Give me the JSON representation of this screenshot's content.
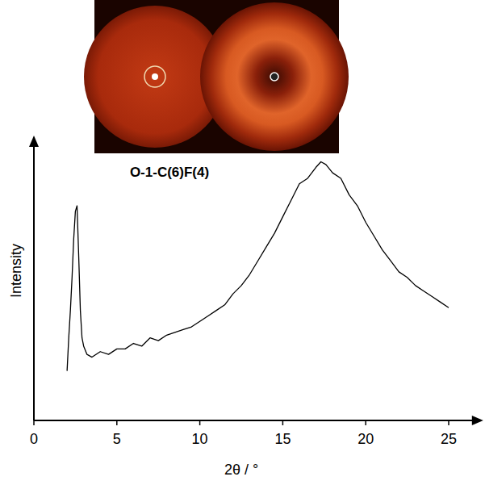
{
  "chart_data": {
    "type": "line",
    "title": "O-1-C(6)F(4)",
    "xlabel": "2θ / °",
    "ylabel": "Intensity",
    "x": [
      2.0,
      2.1,
      2.2,
      2.3,
      2.4,
      2.5,
      2.6,
      2.7,
      2.8,
      2.9,
      3.0,
      3.2,
      3.5,
      4,
      4.5,
      5,
      5.5,
      6,
      6.5,
      7,
      7.5,
      8,
      8.5,
      9,
      9.5,
      10,
      10.5,
      11,
      11.5,
      12,
      12.5,
      13,
      13.5,
      14,
      14.5,
      15,
      15.5,
      16,
      16.5,
      17,
      17.3,
      17.6,
      18,
      18.5,
      19,
      19.5,
      20,
      20.5,
      21,
      21.5,
      22,
      22.5,
      23,
      23.5,
      24,
      24.5,
      25
    ],
    "values": [
      18,
      30,
      40,
      52,
      66,
      76,
      78,
      60,
      40,
      30,
      27,
      24,
      23,
      25,
      24,
      26,
      26,
      28,
      27,
      30,
      29,
      31,
      32,
      33,
      34,
      36,
      38,
      40,
      42,
      46,
      49,
      53,
      58,
      63,
      68,
      74,
      80,
      86,
      88,
      92,
      94,
      93,
      90,
      88,
      82,
      78,
      72,
      67,
      62,
      58,
      54,
      52,
      49,
      47,
      45,
      43,
      41
    ],
    "color": "#000000",
    "xlim": [
      0,
      26.5
    ],
    "xticks": [
      0,
      5,
      10,
      15,
      20,
      25
    ],
    "ylim": [
      0,
      100
    ],
    "tick_labels": "x"
  }
}
